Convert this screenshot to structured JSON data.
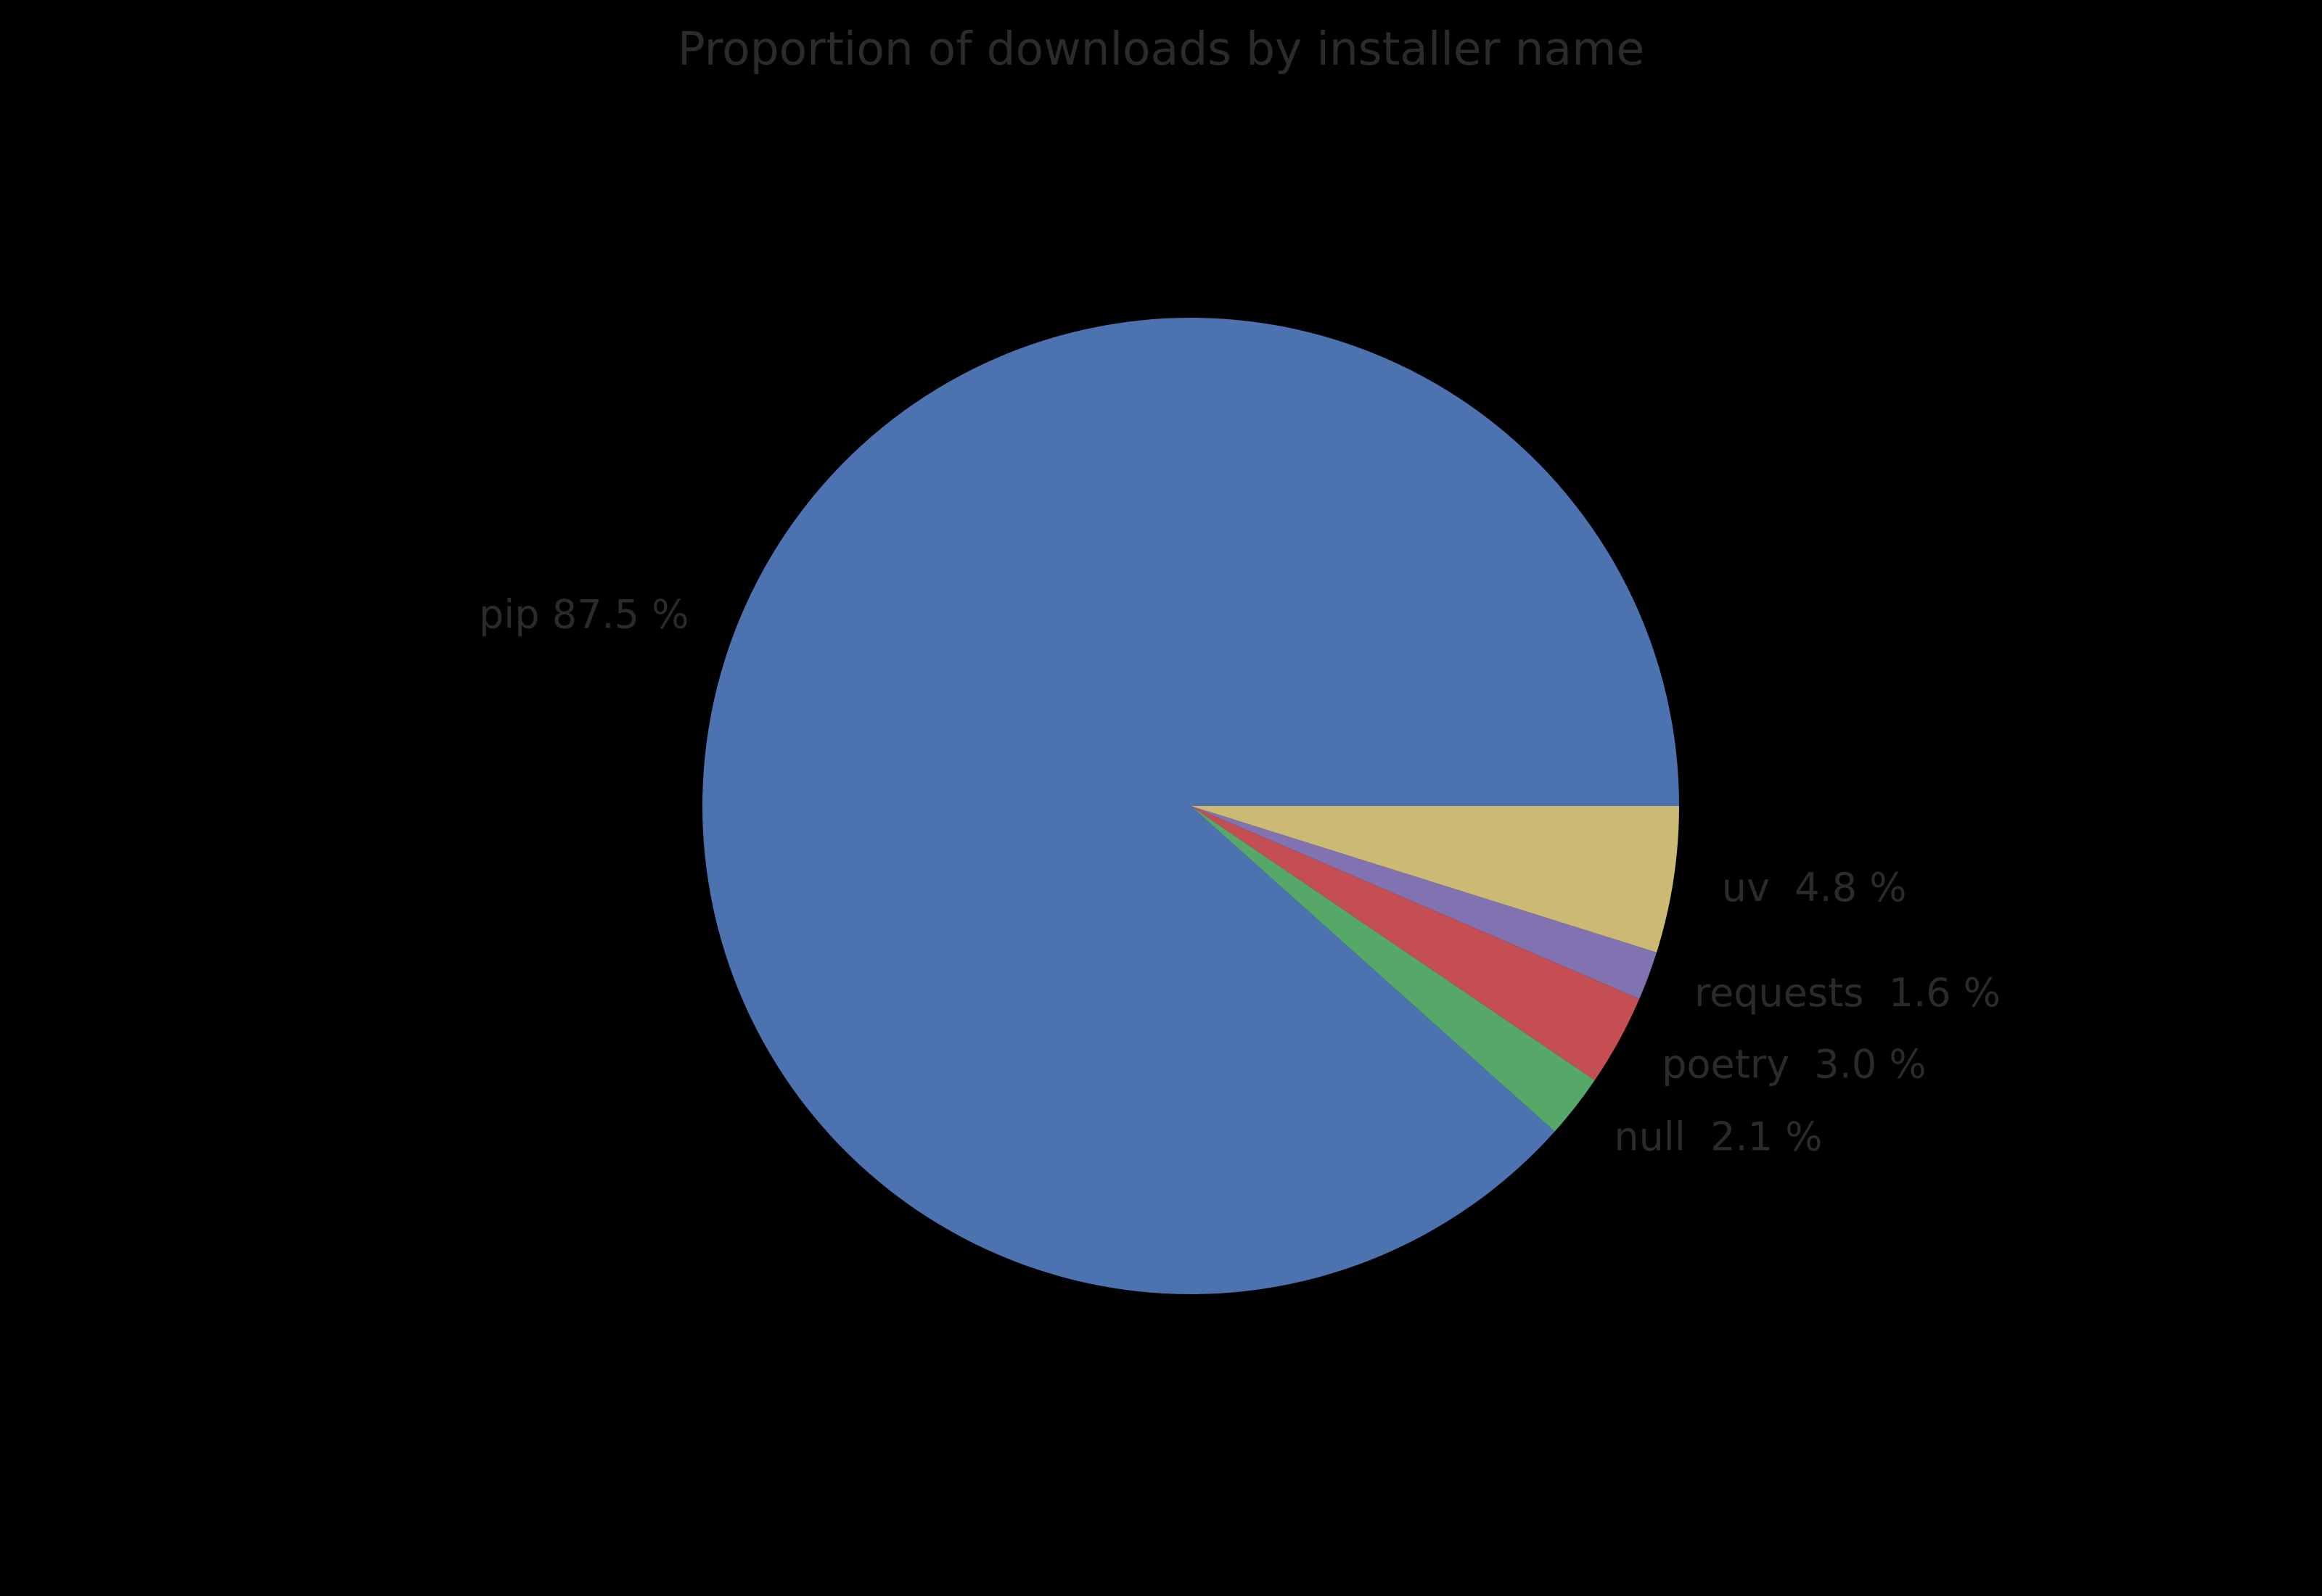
{
  "chart_data": {
    "type": "pie",
    "title": "Proportion of downloads by installer name",
    "slices": [
      {
        "label": "pip",
        "value": 87.5,
        "display": "pip 87.5 %",
        "color": "#4C72B0"
      },
      {
        "label": "uv",
        "value": 4.8,
        "display": "uv  4.8 %",
        "color": "#CCB974"
      },
      {
        "label": "requests",
        "value": 1.6,
        "display": "requests  1.6 %",
        "color": "#8172B2"
      },
      {
        "label": "poetry",
        "value": 3.0,
        "display": "poetry  3.0 %",
        "color": "#C44E52"
      },
      {
        "label": "null",
        "value": 2.1,
        "display": "null  2.1 %",
        "color": "#55A868"
      }
    ],
    "layout": {
      "background": "#000000",
      "text_color": "#2b2b2b",
      "start_angle_deg": 0,
      "direction": "clockwise",
      "draw_order": [
        "uv",
        "requests",
        "poetry",
        "null",
        "pip"
      ],
      "label_distance": 1.1,
      "values_sum_percent": 99.0,
      "normalized_to_full_circle": true,
      "legend": "none",
      "grid": "off"
    }
  }
}
